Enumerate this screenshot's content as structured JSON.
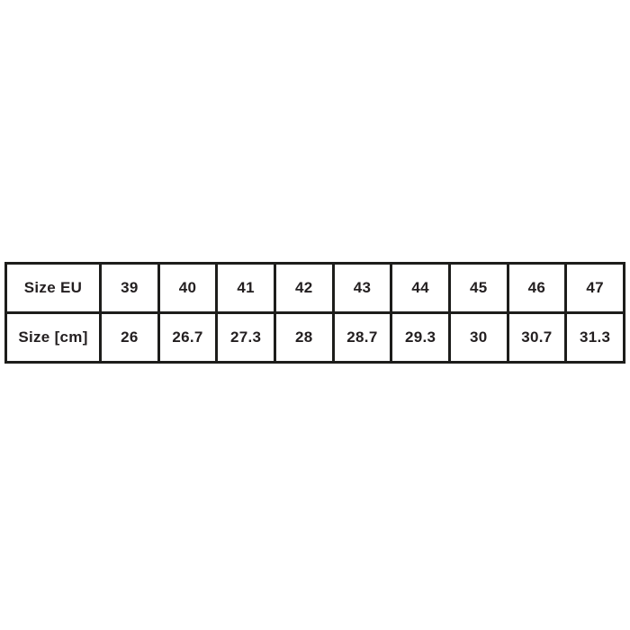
{
  "colors": {
    "background": "#ffffff",
    "border": "#1d1d1b",
    "text": "#231f20"
  },
  "chart_data": {
    "type": "table",
    "rows": [
      {
        "label": "Size EU",
        "values": [
          "39",
          "40",
          "41",
          "42",
          "43",
          "44",
          "45",
          "46",
          "47"
        ]
      },
      {
        "label": "Size [cm]",
        "values": [
          "26",
          "26.7",
          "27.3",
          "28",
          "28.7",
          "29.3",
          "30",
          "30.7",
          "31.3"
        ]
      }
    ],
    "layout_hints": {
      "grid": true,
      "first_column_is_row_header": true,
      "columns": 10
    }
  }
}
